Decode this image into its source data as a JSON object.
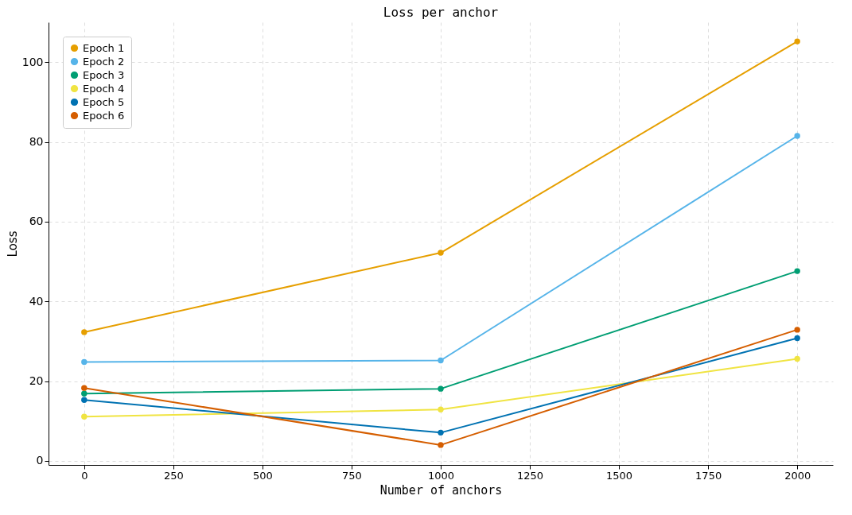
{
  "chart_data": {
    "type": "line",
    "title": "Loss per anchor",
    "xlabel": "Number of anchors",
    "ylabel": "Loss",
    "x": [
      0,
      1000,
      2000
    ],
    "series": [
      {
        "name": "Epoch 1",
        "color": "#e69f00",
        "values": [
          32.3,
          52.2,
          105.2
        ]
      },
      {
        "name": "Epoch 2",
        "color": "#56b4e9",
        "values": [
          24.8,
          25.2,
          81.5
        ]
      },
      {
        "name": "Epoch 3",
        "color": "#009e73",
        "values": [
          16.9,
          18.1,
          47.6
        ]
      },
      {
        "name": "Epoch 4",
        "color": "#f0e442",
        "values": [
          11.1,
          12.9,
          25.6
        ]
      },
      {
        "name": "Epoch 5",
        "color": "#0072b2",
        "values": [
          15.3,
          7.1,
          30.8
        ]
      },
      {
        "name": "Epoch 6",
        "color": "#d55e00",
        "values": [
          18.3,
          4.0,
          32.9
        ]
      }
    ],
    "xlim": [
      -100,
      2100
    ],
    "xticks": [
      0,
      250,
      500,
      750,
      1000,
      1250,
      1500,
      1750,
      2000
    ],
    "ylim": [
      -1,
      110
    ],
    "yticks": [
      0,
      20,
      40,
      60,
      80,
      100
    ],
    "grid": true,
    "legend": "top left",
    "marker": "circle",
    "line_style": "solid"
  }
}
